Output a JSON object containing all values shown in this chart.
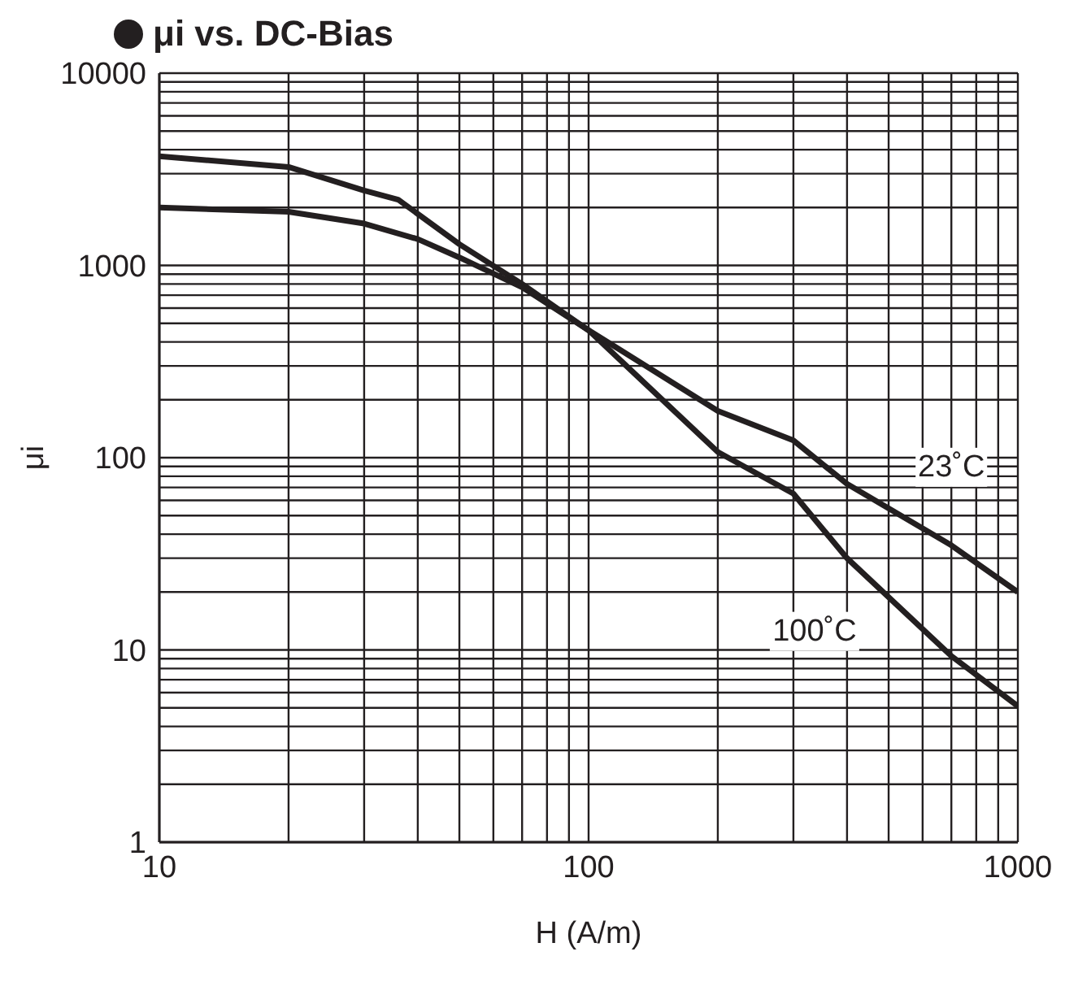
{
  "chart_data": {
    "type": "line",
    "title": "μi vs. DC-Bias",
    "xlabel": "H (A/m)",
    "ylabel": "μi",
    "log": "xy",
    "grid": true,
    "legend": false,
    "marker": "none",
    "line_style": "solid",
    "xlim": [
      10,
      1000
    ],
    "ylim": [
      1,
      10000
    ],
    "xticks": [
      10,
      {
        "value": 20,
        "label": null
      },
      {
        "value": 30,
        "label": null
      },
      {
        "value": 40,
        "label": null
      },
      {
        "value": 50,
        "label": null
      },
      {
        "value": 60,
        "label": null
      },
      {
        "value": 70,
        "label": null
      },
      {
        "value": 80,
        "label": null
      },
      {
        "value": 90,
        "label": null
      },
      100,
      {
        "value": 200,
        "label": null
      },
      {
        "value": 300,
        "label": null
      },
      {
        "value": 400,
        "label": null
      },
      {
        "value": 500,
        "label": null
      },
      {
        "value": 600,
        "label": null
      },
      {
        "value": 700,
        "label": null
      },
      {
        "value": 800,
        "label": null
      },
      {
        "value": 900,
        "label": null
      },
      1000
    ],
    "yticks": [
      1,
      {
        "value": 2,
        "label": null
      },
      {
        "value": 3,
        "label": null
      },
      {
        "value": 4,
        "label": null
      },
      {
        "value": 5,
        "label": null
      },
      {
        "value": 6,
        "label": null
      },
      {
        "value": 7,
        "label": null
      },
      {
        "value": 8,
        "label": null
      },
      {
        "value": 9,
        "label": null
      },
      10,
      {
        "value": 20,
        "label": null
      },
      {
        "value": 30,
        "label": null
      },
      {
        "value": 40,
        "label": null
      },
      {
        "value": 50,
        "label": null
      },
      {
        "value": 60,
        "label": null
      },
      {
        "value": 70,
        "label": null
      },
      {
        "value": 80,
        "label": null
      },
      {
        "value": 90,
        "label": null
      },
      100,
      {
        "value": 200,
        "label": null
      },
      {
        "value": 300,
        "label": null
      },
      {
        "value": 400,
        "label": null
      },
      {
        "value": 500,
        "label": null
      },
      {
        "value": 600,
        "label": null
      },
      {
        "value": 700,
        "label": null
      },
      {
        "value": 800,
        "label": null
      },
      {
        "value": 900,
        "label": null
      },
      1000,
      {
        "value": 2000,
        "label": null
      },
      {
        "value": 3000,
        "label": null
      },
      {
        "value": 4000,
        "label": null
      },
      {
        "value": 5000,
        "label": null
      },
      {
        "value": 6000,
        "label": null
      },
      {
        "value": 7000,
        "label": null
      },
      {
        "value": 8000,
        "label": null
      },
      {
        "value": 9000,
        "label": null
      },
      10000
    ],
    "series": [
      {
        "name": "100˚C",
        "color": "#231f20",
        "x": [
          10,
          20,
          30,
          36,
          50,
          70,
          100,
          200,
          300,
          400,
          700,
          1000
        ],
        "values": [
          3700,
          3250,
          2450,
          2200,
          1290,
          800,
          460,
          107,
          65,
          30,
          9.3,
          5.1
        ]
      },
      {
        "name": "23˚C",
        "color": "#231f20",
        "x": [
          10,
          20,
          30,
          40,
          50,
          70,
          100,
          200,
          300,
          400,
          700,
          1000
        ],
        "values": [
          2000,
          1900,
          1650,
          1370,
          1100,
          770,
          460,
          175,
          123,
          73,
          35,
          20
        ]
      }
    ]
  }
}
